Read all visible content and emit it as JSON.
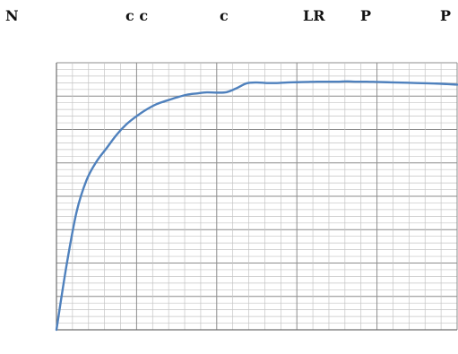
{
  "header_labels": [
    "N",
    "c c",
    "c",
    "LR",
    "P",
    "P"
  ],
  "chart_data": {
    "type": "line",
    "title": "",
    "xlabel": "",
    "ylabel": "",
    "grid": true,
    "xlim": [
      0,
      100
    ],
    "ylim": [
      0,
      100
    ],
    "series": [
      {
        "color": "#4f81bd",
        "x": [
          0,
          2.5,
          5,
          7.5,
          10,
          12.5,
          15,
          17.5,
          20,
          22.5,
          25,
          27.5,
          30,
          32.5,
          35,
          37.5,
          40,
          42.5,
          45,
          47.5,
          50,
          52.5,
          55,
          57.5,
          60,
          62.5,
          65,
          67.5,
          70,
          72.5,
          75,
          77.5,
          80,
          82.5,
          85,
          87.5,
          90,
          92.5,
          95,
          97.5,
          100
        ],
        "y": [
          0,
          24,
          44,
          56,
          63,
          68,
          73,
          77,
          80,
          82.5,
          84.5,
          85.8,
          87,
          88,
          88.5,
          88.9,
          88.8,
          89,
          90.5,
          92.3,
          92.6,
          92.4,
          92.4,
          92.6,
          92.7,
          92.8,
          92.9,
          92.9,
          92.9,
          93,
          92.9,
          92.9,
          92.8,
          92.7,
          92.6,
          92.5,
          92.4,
          92.3,
          92.2,
          92,
          91.8
        ]
      }
    ]
  }
}
